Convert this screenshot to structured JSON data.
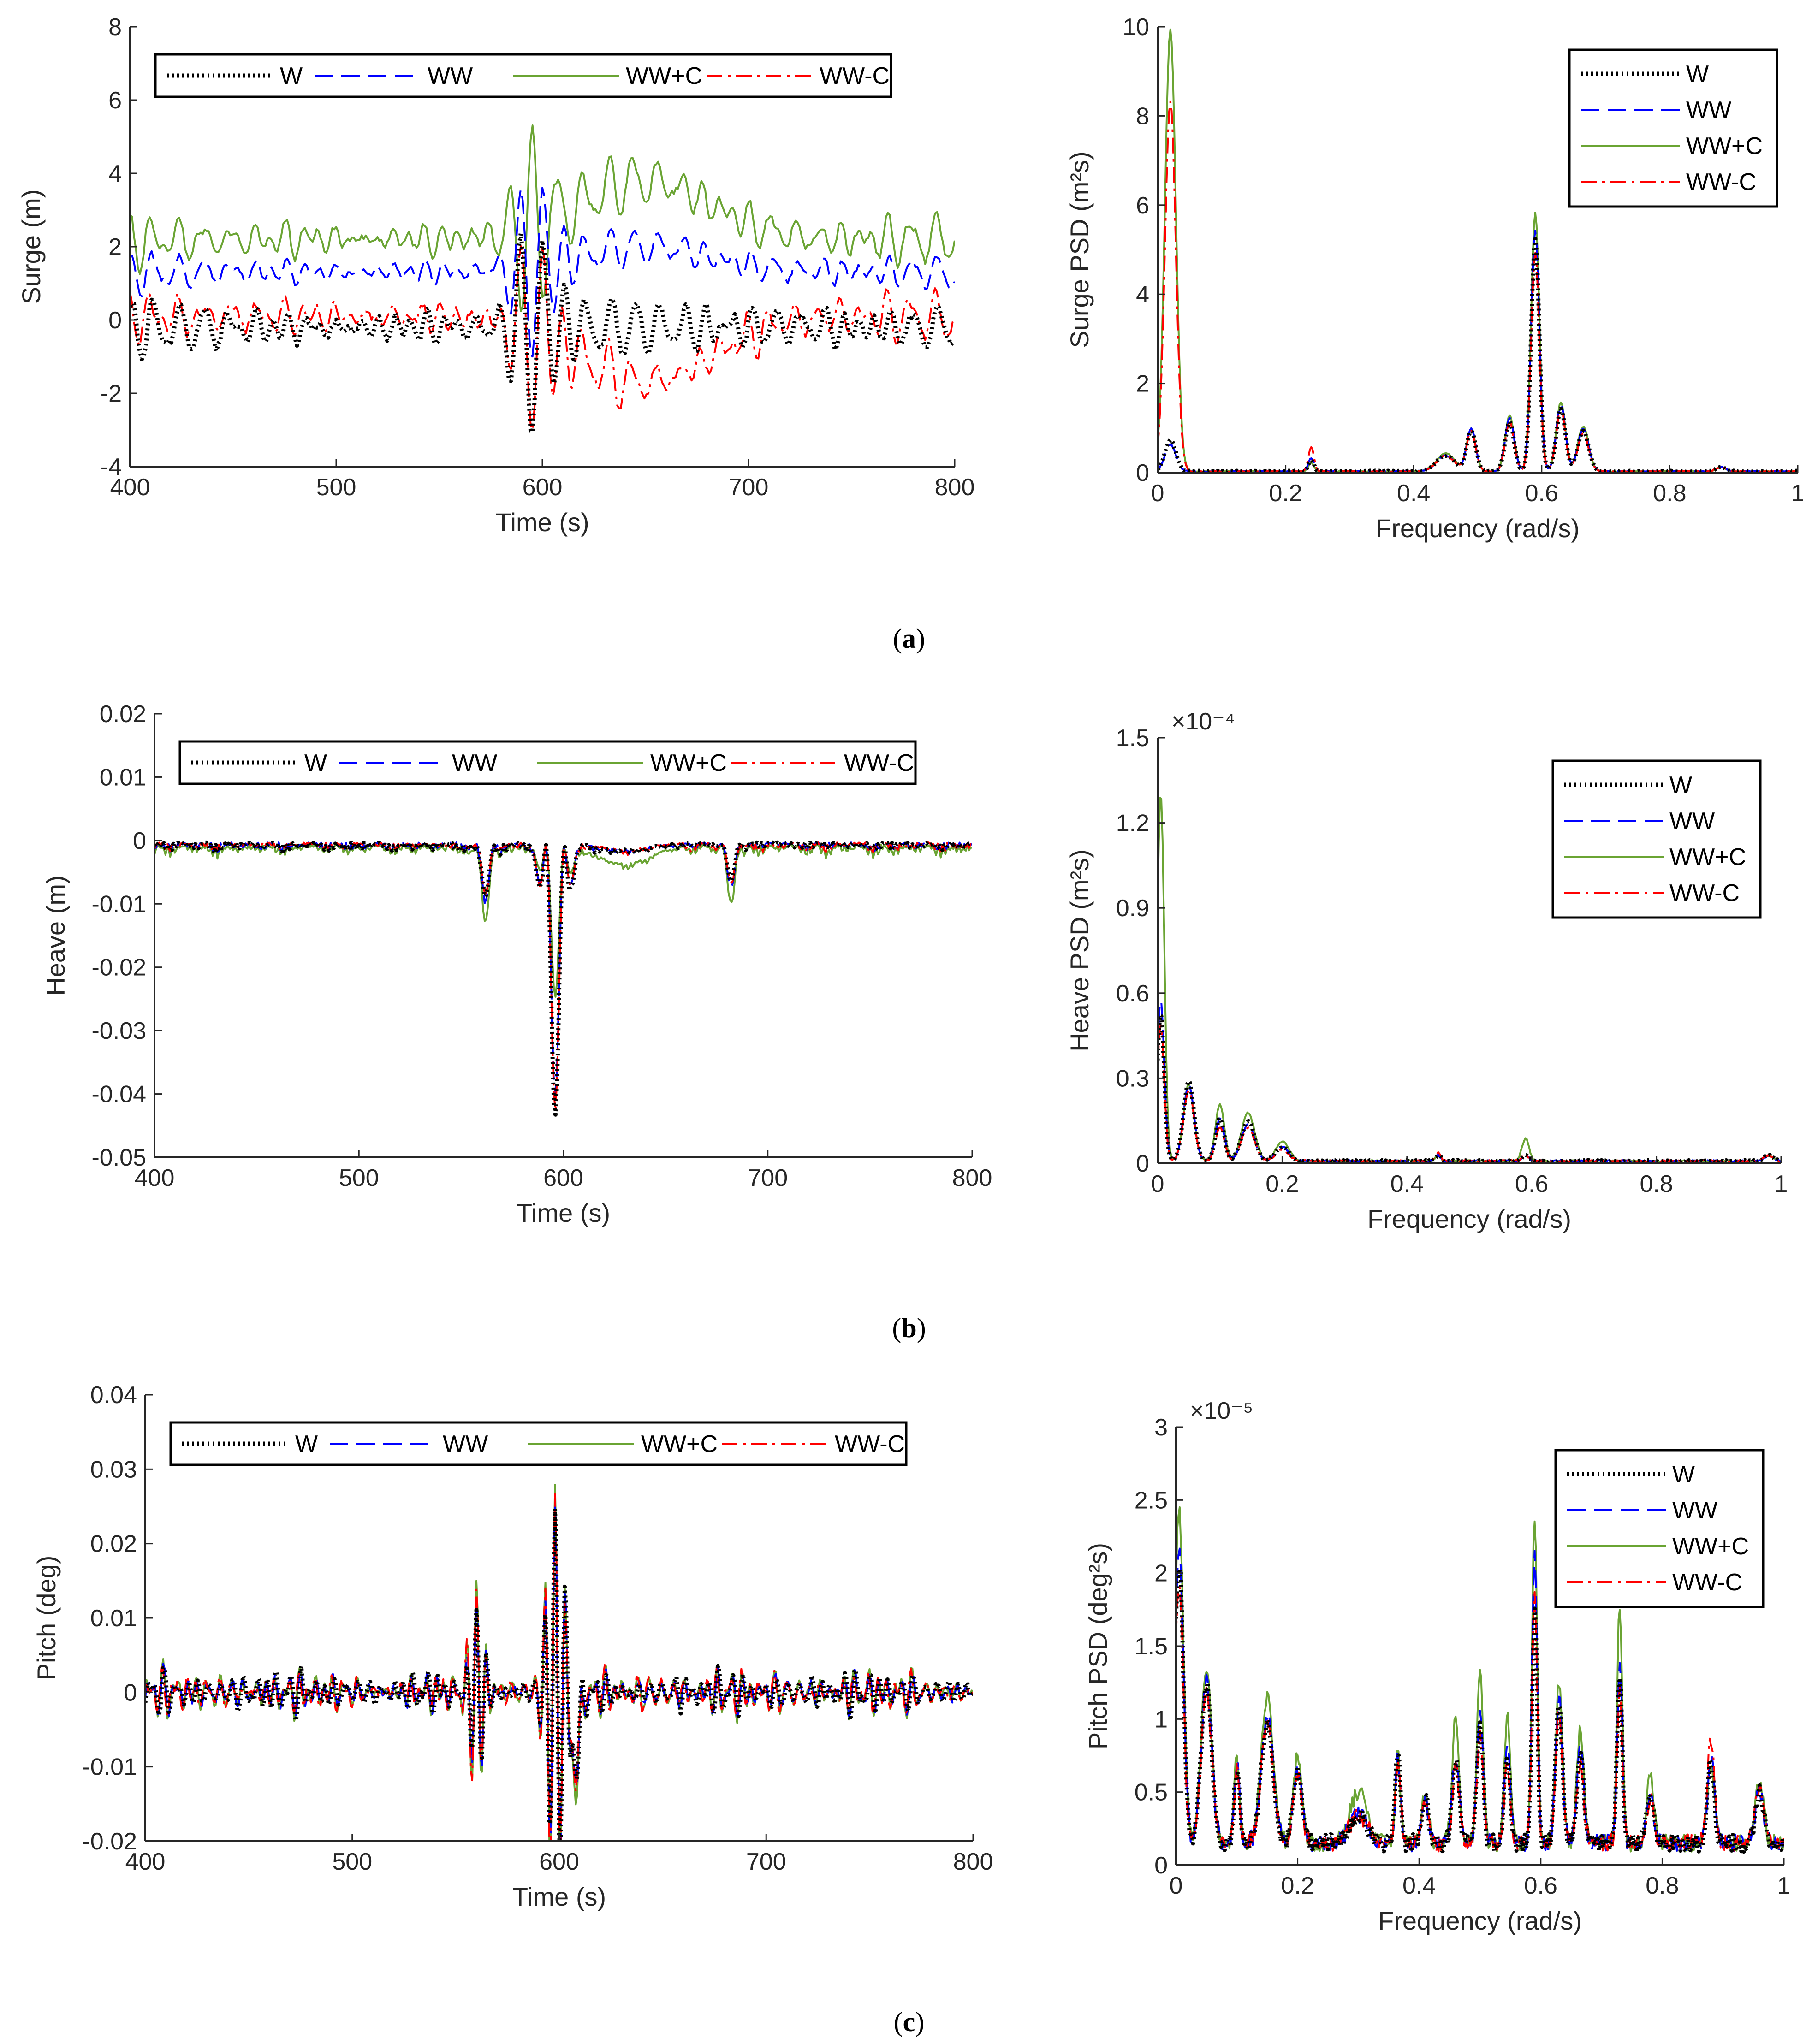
{
  "figure": {
    "captions": [
      "a",
      "b",
      "c"
    ],
    "series_styles": [
      {
        "name": "W",
        "color": "#000000",
        "dash": "dotted"
      },
      {
        "name": "WW",
        "color": "#0000ff",
        "dash": "dashed"
      },
      {
        "name": "WW+C",
        "color": "#6aa433",
        "dash": "solid"
      },
      {
        "name": "WW-C",
        "color": "#ff0000",
        "dash": "dashdot"
      }
    ]
  },
  "chart_data": [
    {
      "id": "surge_time",
      "type": "line",
      "row": 0,
      "col": 0,
      "xlabel": "Time (s)",
      "ylabel": "Surge (m)",
      "xlim": [
        400,
        800
      ],
      "ylim": [
        -4,
        8
      ],
      "xticks": [
        400,
        500,
        600,
        700,
        800
      ],
      "yticks": [
        -4,
        -2,
        0,
        2,
        4,
        6,
        8
      ],
      "legend": {
        "entries": [
          "W",
          "WW",
          "WW+C",
          "WW-C"
        ],
        "placement": "top-inside-horizontal"
      },
      "gen": {
        "seed": 11,
        "t0": 400,
        "t1": 800,
        "n": 420,
        "period": 11,
        "base": {
          "W": -0.2,
          "WW": 1.3,
          "WW+C": 2.2,
          "WW-C": 0.1
        },
        "amp": {
          "W": 0.7,
          "WW": 0.5,
          "WW+C": 0.7,
          "WW-C": 0.7
        },
        "events": [
          {
            "center": 595,
            "width": 12,
            "amp": {
              "W": -3.2,
              "WW": -2.8,
              "WW+C": 2.2,
              "WW-C": -3.4
            },
            "kind": "burst"
          },
          {
            "center": 650,
            "width": 45,
            "amp": {
              "W": 0.0,
              "WW": 0.7,
              "WW+C": 1.6,
              "WW-C": -1.8
            },
            "kind": "shift"
          }
        ]
      }
    },
    {
      "id": "surge_psd",
      "type": "line",
      "row": 0,
      "col": 1,
      "xlabel": "Frequency (rad/s)",
      "ylabel": "Surge PSD (m²s)",
      "xlim": [
        0,
        1
      ],
      "ylim": [
        0,
        10
      ],
      "xticks": [
        0,
        0.2,
        0.4,
        0.6,
        0.8,
        1
      ],
      "yticks": [
        0,
        2,
        4,
        6,
        8,
        10
      ],
      "legend": {
        "entries": [
          "W",
          "WW",
          "WW+C",
          "WW-C"
        ],
        "placement": "top-right-vertical"
      },
      "peaks": [
        {
          "f": 0.02,
          "w": 0.012,
          "h": {
            "W": 0.7,
            "WW": 0.6,
            "WW+C": 9.9,
            "WW-C": 8.3
          }
        },
        {
          "f": 0.24,
          "w": 0.006,
          "h": {
            "W": 0.25,
            "WW": 0.3,
            "WW+C": 0.2,
            "WW-C": 0.55
          }
        },
        {
          "f": 0.45,
          "w": 0.02,
          "h": {
            "W": 0.35,
            "WW": 0.35,
            "WW+C": 0.4,
            "WW-C": 0.35
          }
        },
        {
          "f": 0.49,
          "w": 0.01,
          "h": {
            "W": 0.9,
            "WW": 0.95,
            "WW+C": 0.95,
            "WW-C": 0.9
          }
        },
        {
          "f": 0.55,
          "w": 0.01,
          "h": {
            "W": 1.1,
            "WW": 1.2,
            "WW+C": 1.25,
            "WW-C": 1.1
          }
        },
        {
          "f": 0.59,
          "w": 0.009,
          "h": {
            "W": 5.2,
            "WW": 5.4,
            "WW+C": 5.8,
            "WW-C": 4.9
          }
        },
        {
          "f": 0.63,
          "w": 0.01,
          "h": {
            "W": 1.4,
            "WW": 1.5,
            "WW+C": 1.55,
            "WW-C": 1.4
          }
        },
        {
          "f": 0.665,
          "w": 0.012,
          "h": {
            "W": 0.9,
            "WW": 0.95,
            "WW+C": 1.0,
            "WW-C": 0.85
          }
        },
        {
          "f": 0.88,
          "w": 0.01,
          "h": {
            "W": 0.1,
            "WW": 0.1,
            "WW+C": 0.1,
            "WW-C": 0.1
          }
        }
      ],
      "floor": 0.03
    },
    {
      "id": "heave_time",
      "type": "line",
      "row": 1,
      "col": 0,
      "xlabel": "Time (s)",
      "ylabel": "Heave (m)",
      "xlim": [
        400,
        800
      ],
      "ylim": [
        -0.05,
        0.02
      ],
      "xticks": [
        400,
        500,
        600,
        700,
        800
      ],
      "yticks": [
        -0.05,
        -0.04,
        -0.03,
        -0.02,
        -0.01,
        0,
        0.01,
        0.02
      ],
      "legend": {
        "entries": [
          "W",
          "WW",
          "WW+C",
          "WW-C"
        ],
        "placement": "top-inside-horizontal"
      },
      "gen": {
        "seed": 23,
        "t0": 400,
        "t1": 800,
        "n": 520,
        "period": 6,
        "base": {
          "W": -0.001,
          "WW": -0.001,
          "WW+C": -0.002,
          "WW-C": -0.001
        },
        "amp": {
          "W": 0.0012,
          "WW": 0.0012,
          "WW+C": 0.0016,
          "WW-C": 0.0012
        },
        "onesided": true,
        "events": [
          {
            "center": 596,
            "width": 6,
            "amp": {
              "W": -0.043,
              "WW": -0.04,
              "WW+C": -0.024,
              "WW-C": -0.042
            },
            "kind": "dip"
          },
          {
            "center": 562,
            "width": 5,
            "amp": {
              "W": -0.008,
              "WW": -0.009,
              "WW+C": -0.012,
              "WW-C": -0.008
            },
            "kind": "dip"
          },
          {
            "center": 682,
            "width": 5,
            "amp": {
              "W": -0.006,
              "WW": -0.007,
              "WW+C": -0.009,
              "WW-C": -0.006
            },
            "kind": "dip"
          },
          {
            "center": 630,
            "width": 18,
            "amp": {
              "W": -0.001,
              "WW": -0.001,
              "WW+C": -0.003,
              "WW-C": -0.001
            },
            "kind": "shift"
          }
        ]
      }
    },
    {
      "id": "heave_psd",
      "type": "line",
      "row": 1,
      "col": 1,
      "xlabel": "Frequency (rad/s)",
      "ylabel": "Heave PSD (m²s)",
      "xlim": [
        0,
        1
      ],
      "ylim": [
        0,
        1.5
      ],
      "multiplier": "×10⁻⁴",
      "xticks": [
        0,
        0.2,
        0.4,
        0.6,
        0.8,
        1
      ],
      "yticks": [
        0,
        0.3,
        0.6,
        0.9,
        1.2,
        1.5
      ],
      "legend": {
        "entries": [
          "W",
          "WW",
          "WW+C",
          "WW-C"
        ],
        "placement": "top-right-vertical"
      },
      "peaks": [
        {
          "f": 0.005,
          "w": 0.008,
          "h": {
            "W": 0.52,
            "WW": 0.57,
            "WW+C": 1.3,
            "WW-C": 0.48
          }
        },
        {
          "f": 0.05,
          "w": 0.012,
          "h": {
            "W": 0.28,
            "WW": 0.27,
            "WW+C": 0.27,
            "WW-C": 0.25
          }
        },
        {
          "f": 0.1,
          "w": 0.01,
          "h": {
            "W": 0.15,
            "WW": 0.15,
            "WW+C": 0.2,
            "WW-C": 0.12
          }
        },
        {
          "f": 0.145,
          "w": 0.015,
          "h": {
            "W": 0.14,
            "WW": 0.13,
            "WW+C": 0.17,
            "WW-C": 0.12
          }
        },
        {
          "f": 0.2,
          "w": 0.015,
          "h": {
            "W": 0.05,
            "WW": 0.05,
            "WW+C": 0.07,
            "WW-C": 0.04
          }
        },
        {
          "f": 0.45,
          "w": 0.006,
          "h": {
            "W": 0.02,
            "WW": 0.02,
            "WW+C": 0.02,
            "WW-C": 0.03
          }
        },
        {
          "f": 0.59,
          "w": 0.008,
          "h": {
            "W": 0.02,
            "WW": 0.02,
            "WW+C": 0.08,
            "WW-C": 0.02
          }
        },
        {
          "f": 0.98,
          "w": 0.01,
          "h": {
            "W": 0.02,
            "WW": 0.02,
            "WW+C": 0.02,
            "WW-C": 0.02
          }
        }
      ],
      "floor": 0.008
    },
    {
      "id": "pitch_time",
      "type": "line",
      "row": 2,
      "col": 0,
      "xlabel": "Time (s)",
      "ylabel": "Pitch (deg)",
      "xlim": [
        400,
        800
      ],
      "ylim": [
        -0.02,
        0.04
      ],
      "xticks": [
        400,
        500,
        600,
        700,
        800
      ],
      "yticks": [
        -0.02,
        -0.01,
        0,
        0.01,
        0.02,
        0.03,
        0.04
      ],
      "legend": {
        "entries": [
          "W",
          "WW",
          "WW+C",
          "WW-C"
        ],
        "placement": "top-inside-horizontal"
      },
      "gen": {
        "seed": 37,
        "t0": 400,
        "t1": 800,
        "n": 600,
        "period": 5,
        "base": {
          "W": 0,
          "WW": 0,
          "WW+C": 0,
          "WW-C": 0
        },
        "amp": {
          "W": 0.0025,
          "WW": 0.0025,
          "WW+C": 0.0028,
          "WW-C": 0.0025
        },
        "events": [
          {
            "center": 598,
            "width": 6,
            "amp": {
              "W": 0.025,
              "WW": 0.026,
              "WW+C": 0.028,
              "WW-C": 0.026
            },
            "kind": "burst"
          },
          {
            "center": 560,
            "width": 5,
            "amp": {
              "W": 0.012,
              "WW": 0.013,
              "WW+C": 0.015,
              "WW-C": 0.013
            },
            "kind": "burst"
          },
          {
            "center": 608,
            "width": 4,
            "amp": {
              "W": -0.012,
              "WW": -0.013,
              "WW+C": -0.015,
              "WW-C": -0.013
            },
            "kind": "dip"
          }
        ]
      }
    },
    {
      "id": "pitch_psd",
      "type": "line",
      "row": 2,
      "col": 1,
      "xlabel": "Frequency (rad/s)",
      "ylabel": "Pitch PSD (deg²s)",
      "xlim": [
        0,
        1
      ],
      "ylim": [
        0,
        3
      ],
      "multiplier": "×10⁻⁵",
      "xticks": [
        0,
        0.2,
        0.4,
        0.6,
        0.8,
        1
      ],
      "yticks": [
        0,
        0.5,
        1,
        1.5,
        2,
        2.5,
        3
      ],
      "legend": {
        "entries": [
          "W",
          "WW",
          "WW+C",
          "WW-C"
        ],
        "placement": "top-right-vertical"
      },
      "peaks": [
        {
          "f": 0.005,
          "w": 0.01,
          "h": {
            "W": 1.9,
            "WW": 2.0,
            "WW+C": 2.3,
            "WW-C": 1.8
          }
        },
        {
          "f": 0.05,
          "w": 0.012,
          "h": {
            "W": 1.1,
            "WW": 1.1,
            "WW+C": 1.2,
            "WW-C": 1.05
          }
        },
        {
          "f": 0.1,
          "w": 0.006,
          "h": {
            "W": 0.5,
            "WW": 0.55,
            "WW+C": 0.6,
            "WW-C": 0.5
          }
        },
        {
          "f": 0.15,
          "w": 0.014,
          "h": {
            "W": 0.85,
            "WW": 0.87,
            "WW+C": 1.0,
            "WW-C": 0.82
          }
        },
        {
          "f": 0.2,
          "w": 0.01,
          "h": {
            "W": 0.5,
            "WW": 0.52,
            "WW+C": 0.6,
            "WW-C": 0.45
          }
        },
        {
          "f": 0.3,
          "w": 0.02,
          "h": {
            "W": 0.2,
            "WW": 0.2,
            "WW+C": 0.35,
            "WW-C": 0.2
          }
        },
        {
          "f": 0.365,
          "w": 0.006,
          "h": {
            "W": 0.65,
            "WW": 0.6,
            "WW+C": 0.6,
            "WW-C": 0.55
          }
        },
        {
          "f": 0.41,
          "w": 0.008,
          "h": {
            "W": 0.3,
            "WW": 0.3,
            "WW+C": 0.35,
            "WW-C": 0.25
          }
        },
        {
          "f": 0.46,
          "w": 0.008,
          "h": {
            "W": 0.55,
            "WW": 0.6,
            "WW+C": 0.85,
            "WW-C": 0.5
          }
        },
        {
          "f": 0.5,
          "w": 0.007,
          "h": {
            "W": 0.85,
            "WW": 0.9,
            "WW+C": 1.2,
            "WW-C": 0.75
          }
        },
        {
          "f": 0.545,
          "w": 0.007,
          "h": {
            "W": 0.6,
            "WW": 0.65,
            "WW+C": 0.9,
            "WW-C": 0.55
          }
        },
        {
          "f": 0.59,
          "w": 0.006,
          "h": {
            "W": 1.6,
            "WW": 2.0,
            "WW+C": 2.25,
            "WW-C": 1.7
          }
        },
        {
          "f": 0.63,
          "w": 0.008,
          "h": {
            "W": 0.95,
            "WW": 1.0,
            "WW+C": 1.1,
            "WW-C": 0.9
          }
        },
        {
          "f": 0.665,
          "w": 0.008,
          "h": {
            "W": 0.6,
            "WW": 0.65,
            "WW+C": 0.8,
            "WW-C": 0.55
          }
        },
        {
          "f": 0.73,
          "w": 0.006,
          "h": {
            "W": 1.15,
            "WW": 1.2,
            "WW+C": 1.65,
            "WW-C": 1.05
          }
        },
        {
          "f": 0.78,
          "w": 0.008,
          "h": {
            "W": 0.35,
            "WW": 0.35,
            "WW+C": 0.45,
            "WW-C": 0.3
          }
        },
        {
          "f": 0.88,
          "w": 0.008,
          "h": {
            "W": 0.55,
            "WW": 0.6,
            "WW+C": 0.55,
            "WW-C": 0.72
          }
        },
        {
          "f": 0.96,
          "w": 0.01,
          "h": {
            "W": 0.35,
            "WW": 0.35,
            "WW+C": 0.4,
            "WW-C": 0.4
          }
        }
      ],
      "floor": 0.15
    }
  ]
}
